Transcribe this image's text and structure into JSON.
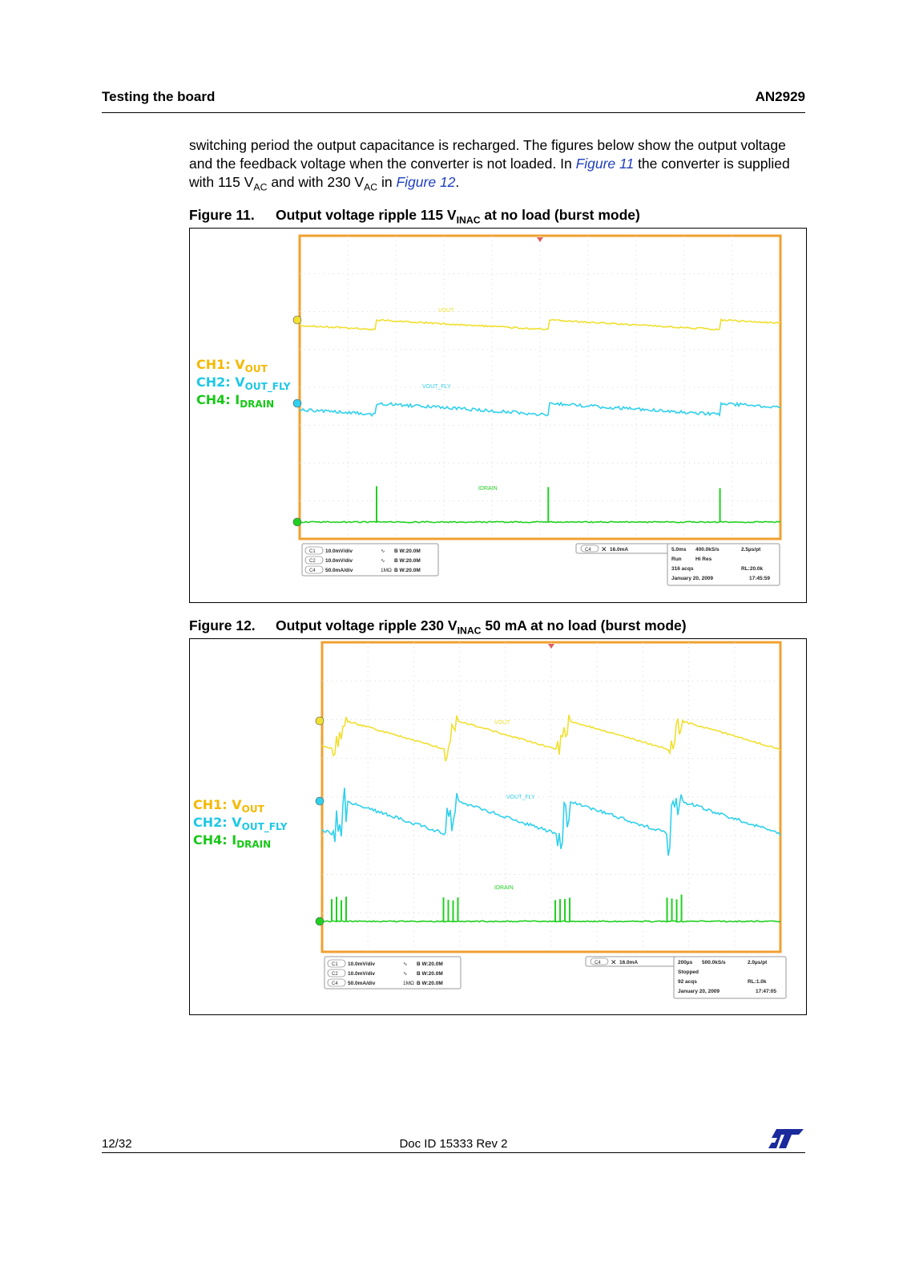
{
  "header": {
    "section": "Testing the board",
    "doc_code": "AN2929"
  },
  "body": {
    "text_1": "switching period the output capacitance is recharged. The figures below show the output voltage and the feedback voltage when the converter is not loaded. In ",
    "link_1": "Figure 11",
    "text_2": " the converter is supplied with 115 V",
    "sub_1": "AC",
    "text_3": " and with 230 V",
    "sub_2": "AC",
    "text_4": " in ",
    "link_2": "Figure 12",
    "text_5": "."
  },
  "figures": [
    {
      "number": "Figure 11.",
      "title_a": "Output voltage ripple 115 V",
      "title_sub": "INAC",
      "title_b": " at no load (burst mode)",
      "legend": [
        {
          "prefix": "CH1: V",
          "sub": "OUT",
          "color": "#f5b800"
        },
        {
          "prefix": "CH2: V",
          "sub": "OUT_FLY",
          "color": "#1ec8e6"
        },
        {
          "prefix": "CH4: I",
          "sub": "DRAIN",
          "color": "#18c818"
        }
      ],
      "trace_labels": {
        "ch1": "VOUT",
        "ch2": "VOUT_FLY",
        "ch4": "IDRAIN"
      },
      "readout_left": [
        {
          "ch": "C1",
          "scale": "10.0mV/div",
          "coupling": "∿",
          "bw": "B W:20.0M"
        },
        {
          "ch": "C2",
          "scale": "10.0mV/div",
          "coupling": "∿",
          "bw": "B W:20.0M"
        },
        {
          "ch": "C4",
          "scale": "50.0mA/div",
          "coupling": "1MΩ",
          "bw": "B W:20.0M"
        }
      ],
      "trigger": {
        "ch": "C4",
        "level": "16.0mA"
      },
      "readout_right": [
        [
          "5.0ms",
          "400.0kS/s",
          "2.5µs/pt"
        ],
        [
          "Run",
          "Hi Res",
          ""
        ],
        [
          "316 acqs",
          "",
          "RL:20.0k"
        ],
        [
          "January 20, 2009",
          "",
          "17:45:59"
        ]
      ]
    },
    {
      "number": "Figure 12.",
      "title_a": "Output voltage ripple 230 V",
      "title_sub": "INAC",
      "title_b": " 50 mA at no load (burst mode)",
      "legend": [
        {
          "prefix": "CH1: V",
          "sub": "OUT",
          "color": "#f5b800"
        },
        {
          "prefix": "CH2: V",
          "sub": "OUT_FLY",
          "color": "#1ec8e6"
        },
        {
          "prefix": "CH4: I",
          "sub": "DRAIN",
          "color": "#18c818"
        }
      ],
      "trace_labels": {
        "ch1": "VOUT",
        "ch2": "VOUT_FLY",
        "ch4": "IDRAIN"
      },
      "readout_left": [
        {
          "ch": "C1",
          "scale": "10.0mV/div",
          "coupling": "∿",
          "bw": "B W:20.0M"
        },
        {
          "ch": "C2",
          "scale": "10.0mV/div",
          "coupling": "∿",
          "bw": "B W:20.0M"
        },
        {
          "ch": "C4",
          "scale": "50.0mA/div",
          "coupling": "1MΩ",
          "bw": "B W:20.0M"
        }
      ],
      "trigger": {
        "ch": "C4",
        "level": "16.0mA"
      },
      "readout_right": [
        [
          "200µs",
          "500.0kS/s",
          "2.0µs/pt"
        ],
        [
          "Stopped",
          "",
          ""
        ],
        [
          "92 acqs",
          "",
          "RL:1.0k"
        ],
        [
          "January 20, 2009",
          "",
          "17:47:05"
        ]
      ]
    }
  ],
  "footer": {
    "page": "12/32",
    "doc_id": "Doc ID 15333 Rev 2"
  },
  "colors": {
    "frame": "#f0a030",
    "ch1": "#f0e030",
    "ch2": "#30d0ec",
    "ch4": "#20d020",
    "link": "#1f3fbf",
    "logo": "#1a2a9c"
  }
}
